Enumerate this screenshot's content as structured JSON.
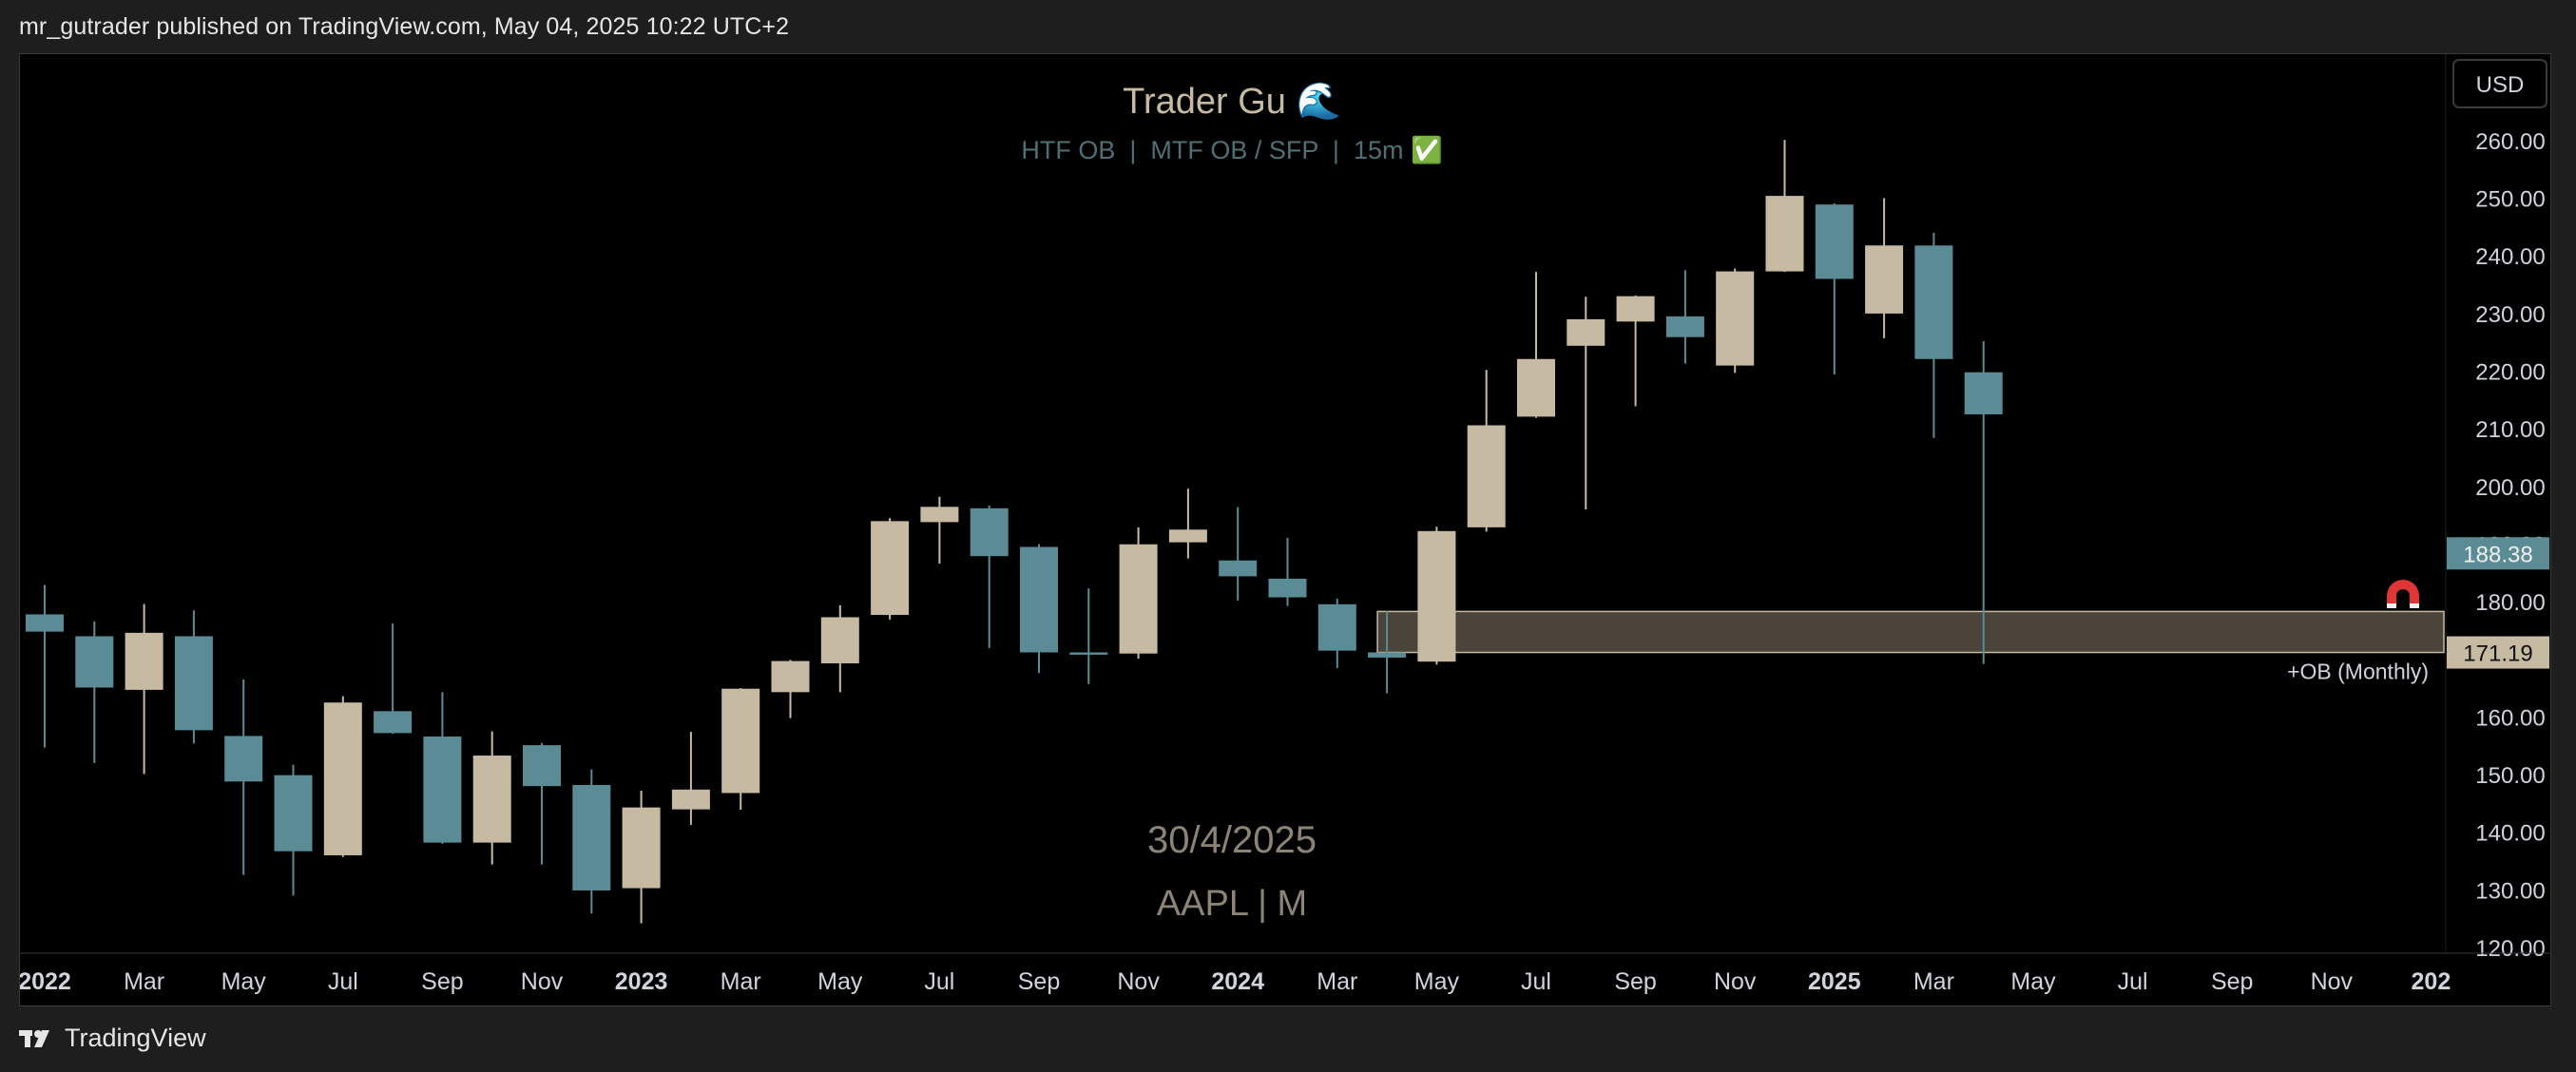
{
  "header": {
    "published_text": "mr_gutrader published on TradingView.com, May 04, 2025 10:22 UTC+2"
  },
  "footer": {
    "brand": "TradingView"
  },
  "chart_data": {
    "type": "candlestick",
    "title": "Trader Gu 🌊",
    "subtitle": "HTF OB  |  MTF OB / SFP  |  15m ✅",
    "watermark_date": "30/4/2025",
    "watermark_symbol": "AAPL | M",
    "currency_button": "USD",
    "y_axis": {
      "ticks": [
        120,
        130,
        140,
        150,
        160,
        170,
        180,
        190,
        200,
        210,
        220,
        230,
        240,
        250,
        260
      ],
      "tick_labels": [
        "120.00",
        "130.00",
        "140.00",
        "150.00",
        "160.00",
        "170.00",
        "180.00",
        "190.00",
        "200.00",
        "210.00",
        "220.00",
        "230.00",
        "240.00",
        "250.00",
        "260.00"
      ],
      "ylim": [
        119,
        266
      ]
    },
    "x_axis": {
      "tick_labels": [
        "2022",
        "Mar",
        "May",
        "Jul",
        "Sep",
        "Nov",
        "2023",
        "Mar",
        "May",
        "Jul",
        "Sep",
        "Nov",
        "2024",
        "Mar",
        "May",
        "Jul",
        "Sep",
        "Nov",
        "2025",
        "Mar",
        "May",
        "Jul",
        "Sep",
        "Nov",
        "202"
      ],
      "bold_labels": [
        "2022",
        "2023",
        "2024",
        "2025",
        "202"
      ]
    },
    "candles": [
      {
        "date": "2022-01",
        "open": 177.8,
        "high": 182.9,
        "low": 154.7,
        "close": 174.8
      },
      {
        "date": "2022-02",
        "open": 174.0,
        "high": 176.6,
        "low": 152.0,
        "close": 165.1
      },
      {
        "date": "2022-03",
        "open": 164.7,
        "high": 179.6,
        "low": 150.1,
        "close": 174.6
      },
      {
        "date": "2022-04",
        "open": 174.0,
        "high": 178.5,
        "low": 155.4,
        "close": 157.7
      },
      {
        "date": "2022-05",
        "open": 156.7,
        "high": 166.5,
        "low": 132.6,
        "close": 148.8
      },
      {
        "date": "2022-06",
        "open": 149.9,
        "high": 151.7,
        "low": 129.0,
        "close": 136.7
      },
      {
        "date": "2022-07",
        "open": 136.0,
        "high": 163.6,
        "low": 135.7,
        "close": 162.5
      },
      {
        "date": "2022-08",
        "open": 161.0,
        "high": 176.2,
        "low": 157.1,
        "close": 157.2
      },
      {
        "date": "2022-09",
        "open": 156.6,
        "high": 164.3,
        "low": 138.0,
        "close": 138.2
      },
      {
        "date": "2022-10",
        "open": 138.2,
        "high": 157.5,
        "low": 134.4,
        "close": 153.3
      },
      {
        "date": "2022-11",
        "open": 155.1,
        "high": 155.5,
        "low": 134.4,
        "close": 148.0
      },
      {
        "date": "2022-12",
        "open": 148.2,
        "high": 150.9,
        "low": 125.9,
        "close": 129.9
      },
      {
        "date": "2023-01",
        "open": 130.3,
        "high": 147.2,
        "low": 124.2,
        "close": 144.3
      },
      {
        "date": "2023-02",
        "open": 143.97,
        "high": 157.4,
        "low": 141.3,
        "close": 147.4
      },
      {
        "date": "2023-03",
        "open": 146.8,
        "high": 165.0,
        "low": 143.9,
        "close": 164.9
      },
      {
        "date": "2023-04",
        "open": 164.3,
        "high": 169.9,
        "low": 159.8,
        "close": 169.7
      },
      {
        "date": "2023-05",
        "open": 169.3,
        "high": 179.35,
        "low": 164.3,
        "close": 177.3
      },
      {
        "date": "2023-06",
        "open": 177.7,
        "high": 194.5,
        "low": 176.9,
        "close": 193.97
      },
      {
        "date": "2023-07",
        "open": 193.8,
        "high": 198.2,
        "low": 186.6,
        "close": 196.45
      },
      {
        "date": "2023-08",
        "open": 196.2,
        "high": 196.7,
        "low": 171.96,
        "close": 187.9
      },
      {
        "date": "2023-09",
        "open": 189.5,
        "high": 189.98,
        "low": 167.6,
        "close": 171.2
      },
      {
        "date": "2023-10",
        "open": 171.2,
        "high": 182.3,
        "low": 165.7,
        "close": 170.8
      },
      {
        "date": "2023-11",
        "open": 171.0,
        "high": 192.9,
        "low": 170.1,
        "close": 189.95
      },
      {
        "date": "2023-12",
        "open": 190.3,
        "high": 199.6,
        "low": 187.5,
        "close": 192.5
      },
      {
        "date": "2024-01",
        "open": 187.15,
        "high": 196.4,
        "low": 180.2,
        "close": 184.4
      },
      {
        "date": "2024-02",
        "open": 183.99,
        "high": 191.05,
        "low": 179.25,
        "close": 180.75
      },
      {
        "date": "2024-03",
        "open": 179.55,
        "high": 180.5,
        "low": 168.5,
        "close": 171.5
      },
      {
        "date": "2024-04",
        "open": 171.2,
        "high": 178.4,
        "low": 164.1,
        "close": 170.3
      },
      {
        "date": "2024-05",
        "open": 169.6,
        "high": 193.0,
        "low": 169.1,
        "close": 192.25
      },
      {
        "date": "2024-06",
        "open": 192.9,
        "high": 220.2,
        "low": 192.15,
        "close": 210.6
      },
      {
        "date": "2024-07",
        "open": 212.1,
        "high": 237.2,
        "low": 211.9,
        "close": 222.1
      },
      {
        "date": "2024-08",
        "open": 224.4,
        "high": 232.9,
        "low": 196.0,
        "close": 229.0
      },
      {
        "date": "2024-09",
        "open": 228.6,
        "high": 233.1,
        "low": 213.9,
        "close": 233.0
      },
      {
        "date": "2024-10",
        "open": 229.5,
        "high": 237.5,
        "low": 221.3,
        "close": 225.9
      },
      {
        "date": "2024-11",
        "open": 220.97,
        "high": 237.8,
        "low": 219.7,
        "close": 237.3
      },
      {
        "date": "2024-12",
        "open": 237.3,
        "high": 260.1,
        "low": 237.2,
        "close": 250.4
      },
      {
        "date": "2025-01",
        "open": 248.9,
        "high": 249.1,
        "low": 219.4,
        "close": 236.0
      },
      {
        "date": "2025-02",
        "open": 229.99,
        "high": 250.0,
        "low": 225.7,
        "close": 241.8
      },
      {
        "date": "2025-03",
        "open": 241.8,
        "high": 244.0,
        "low": 208.4,
        "close": 222.1
      },
      {
        "date": "2025-04",
        "open": 219.8,
        "high": 225.2,
        "low": 169.2,
        "close": 212.5
      }
    ],
    "order_block": {
      "label": "+OB (Monthly)",
      "top": 178.3,
      "bottom": 171.19,
      "start_date": "2024-04"
    },
    "price_labels": [
      {
        "value": "188.38",
        "price": 188.38,
        "color": "#5b8c96"
      },
      {
        "value": "171.19",
        "price": 171.19,
        "color": "#c7baa3"
      }
    ],
    "colors": {
      "bull": "#c7baa3",
      "bear": "#5b8c96",
      "background": "#000000",
      "order_block_fill": "#4a443a",
      "order_block_border": "#c7baa3",
      "axis_text": "#d1d4dc",
      "title_text": "#c7baa3",
      "subtitle_text": "#4f6f74",
      "watermark_text": "#8c8577",
      "magnet": "#e03535"
    },
    "icons": [
      "wave-emoji",
      "check-mark-emoji",
      "magnet-icon",
      "tradingview-logo-icon"
    ]
  }
}
